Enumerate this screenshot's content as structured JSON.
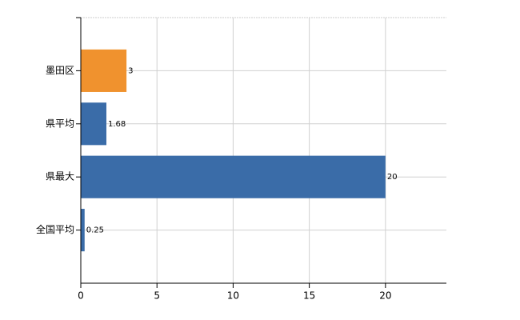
{
  "chart_data": {
    "type": "hbar",
    "categories": [
      "墨田区",
      "県平均",
      "県最大",
      "全国平均"
    ],
    "values": [
      3,
      1.68,
      20,
      0.25
    ],
    "colors": [
      "#f0922e",
      "#3a6ca8",
      "#3a6ca8",
      "#3a6ca8"
    ],
    "xlim": [
      0,
      24
    ],
    "xticks": [
      0,
      5,
      10,
      15,
      20
    ],
    "grid": true
  }
}
